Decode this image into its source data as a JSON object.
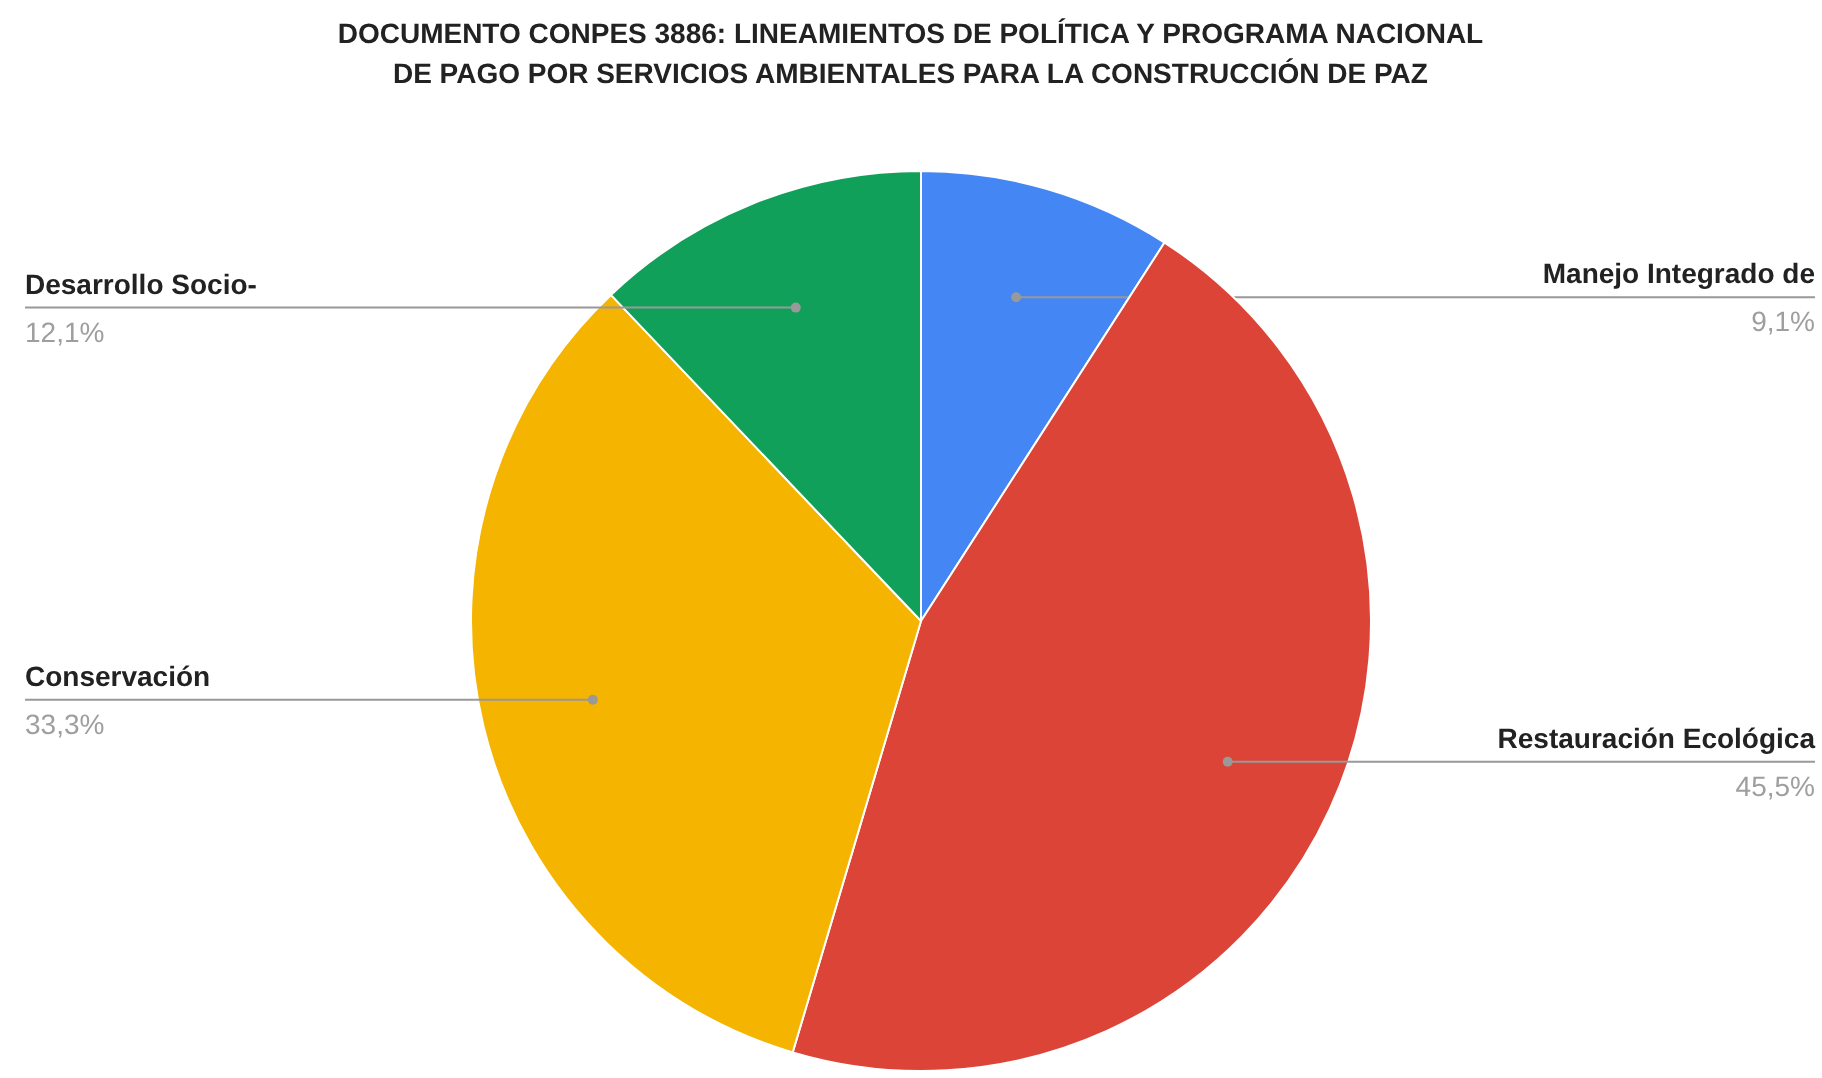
{
  "chart_data": {
    "type": "pie",
    "title": "DOCUMENTO CONPES 3886: LINEAMIENTOS DE POLÍTICA Y PROGRAMA NACIONAL DE PAGO POR SERVICIOS AMBIENTALES PARA LA CONSTRUCCIÓN DE PAZ",
    "categories": [
      "Manejo Integrado de",
      "Restauración Ecológica",
      "Conservación",
      "Desarrollo Socio-"
    ],
    "values": [
      9.1,
      45.5,
      33.3,
      12.1
    ],
    "colors": [
      "#4486f4",
      "#db4437",
      "#f4b400",
      "#10a05a"
    ],
    "value_labels": [
      "9,1%",
      "45,5%",
      "33,3%",
      "12,1%"
    ]
  }
}
